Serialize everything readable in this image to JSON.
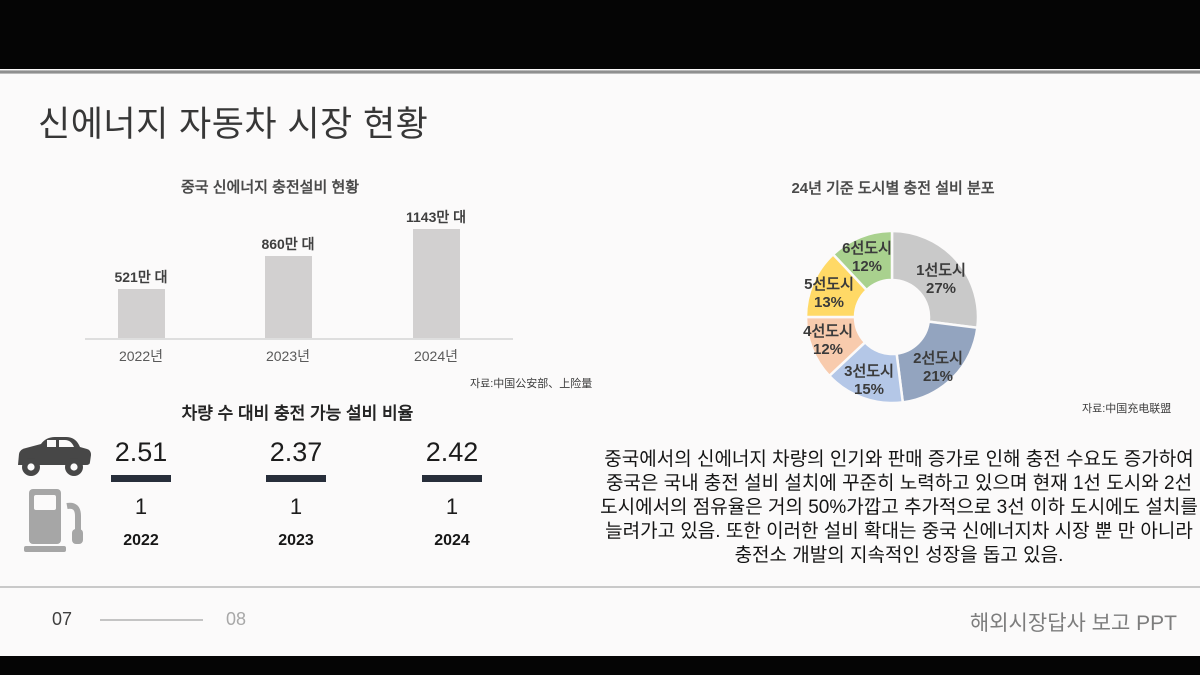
{
  "slide": {
    "title": "신에너지 자동차 시장 현황",
    "footer": {
      "page_current": "07",
      "page_next": "08",
      "deck_title": "해외시장답사 보고 PPT"
    }
  },
  "chart_data": [
    {
      "type": "bar",
      "title": "중국 신에너지 충전설비 현황",
      "categories": [
        "2022년",
        "2023년",
        "2024년"
      ],
      "values": [
        521,
        860,
        1143
      ],
      "value_labels": [
        "521만 대",
        "860만 대",
        "1143만 대"
      ],
      "unit": "만 대",
      "ylim": [
        0,
        1250
      ],
      "grid": false,
      "bar_color": "#d2d0d0",
      "source": "자료:中国公安部、上险量"
    },
    {
      "type": "pie",
      "subtype": "donut",
      "title": "24년 기준 도시별 충전 설비 분포",
      "labels": [
        "1선도시",
        "2선도시",
        "3선도시",
        "4선도시",
        "5선도시",
        "6선도시"
      ],
      "values": [
        27,
        21,
        15,
        12,
        13,
        12
      ],
      "value_labels": [
        "27%",
        "21%",
        "15%",
        "12%",
        "13%",
        "12%"
      ],
      "colors": [
        "#c9c9c9",
        "#93a4bf",
        "#b4c7e7",
        "#f8cbad",
        "#ffd966",
        "#a9d18e"
      ],
      "legend": "labels-inside",
      "source": "자료:中国充电联盟"
    }
  ],
  "ratio": {
    "title": "차량 수 대비 충전 가능 설비 비율",
    "icons": [
      "car-icon",
      "fuel-pump-icon"
    ],
    "items": [
      {
        "year": "2022",
        "numerator": "2.51",
        "denominator": "1"
      },
      {
        "year": "2023",
        "numerator": "2.37",
        "denominator": "1"
      },
      {
        "year": "2024",
        "numerator": "2.42",
        "denominator": "1"
      }
    ]
  },
  "paragraph": {
    "lines": [
      "중국에서의 신에너지 차량의 인기와 판매 증가로 인해 충전 수요도 증가하여",
      "중국은 국내 충전 설비 설치에 꾸준히 노력하고 있으며 현재 1선 도시와 2선",
      "도시에서의 점유율은 거의 50%가깝고 추가적으로 3선 이하 도시에도 설치를",
      "늘려가고 있음. 또한 이러한 설비 확대는 중국 신에너지차 시장 뿐 만 아니라",
      "충전소 개발의 지속적인 성장을 돕고 있음."
    ]
  },
  "theme": {
    "background": "#fbfafa",
    "letterbox": "#050505",
    "fraction_bar": "#272e3a",
    "car_icon_color": "#474747",
    "pump_icon_color": "#a6a6a6"
  }
}
